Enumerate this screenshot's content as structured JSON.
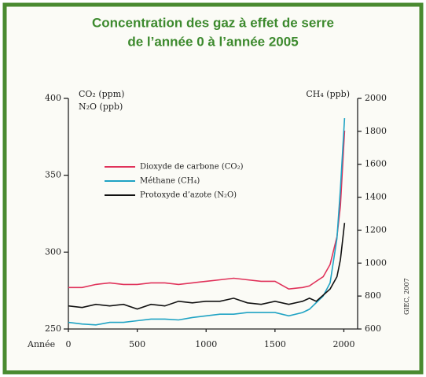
{
  "chart_data": {
    "type": "line",
    "title": [
      "Concentration des gaz à effet de serre",
      "de l’année 0 à l’année 2005"
    ],
    "y_label": [
      "CO₂ (ppm)",
      "N₂O (ppb)"
    ],
    "y2_label": "CH₄ (ppb)",
    "x_label": "Année",
    "source": "GIEC, 2007",
    "x": [
      0,
      100,
      200,
      300,
      400,
      500,
      600,
      700,
      800,
      900,
      1000,
      1100,
      1200,
      1300,
      1400,
      1500,
      1600,
      1700,
      1750,
      1800,
      1850,
      1900,
      1950,
      1975,
      2005
    ],
    "series": [
      {
        "name": "Dioxyde de carbone (CO₂)",
        "color": "#e0325a",
        "values": [
          277,
          277,
          279,
          280,
          279,
          279,
          280,
          280,
          279,
          280,
          281,
          282,
          283,
          282,
          281,
          281,
          276,
          277,
          278,
          281,
          284,
          292,
          310,
          330,
          379
        ]
      },
      {
        "name": "Méthane (CH₄)",
        "color": "#1fa3c4",
        "axis": "y2",
        "values": [
          640,
          630,
          625,
          640,
          640,
          650,
          660,
          660,
          655,
          670,
          680,
          690,
          690,
          700,
          700,
          700,
          680,
          700,
          720,
          760,
          800,
          880,
          1150,
          1450,
          1880
        ]
      },
      {
        "name": "Protoxyde d’azote (N₂O)",
        "color": "#111111",
        "values": [
          265,
          264,
          266,
          265,
          266,
          263,
          266,
          265,
          268,
          267,
          268,
          268,
          270,
          267,
          266,
          268,
          266,
          268,
          270,
          268,
          272,
          276,
          284,
          295,
          319
        ]
      }
    ],
    "xlim": [
      0,
      2100
    ],
    "xticks": [
      0,
      500,
      1000,
      1500,
      2000
    ],
    "ylim": [
      250,
      400
    ],
    "yticks": [
      250,
      300,
      350,
      400
    ],
    "y2lim": [
      600,
      2000
    ],
    "y2ticks": [
      600,
      800,
      1000,
      1200,
      1400,
      1600,
      1800,
      2000
    ]
  }
}
